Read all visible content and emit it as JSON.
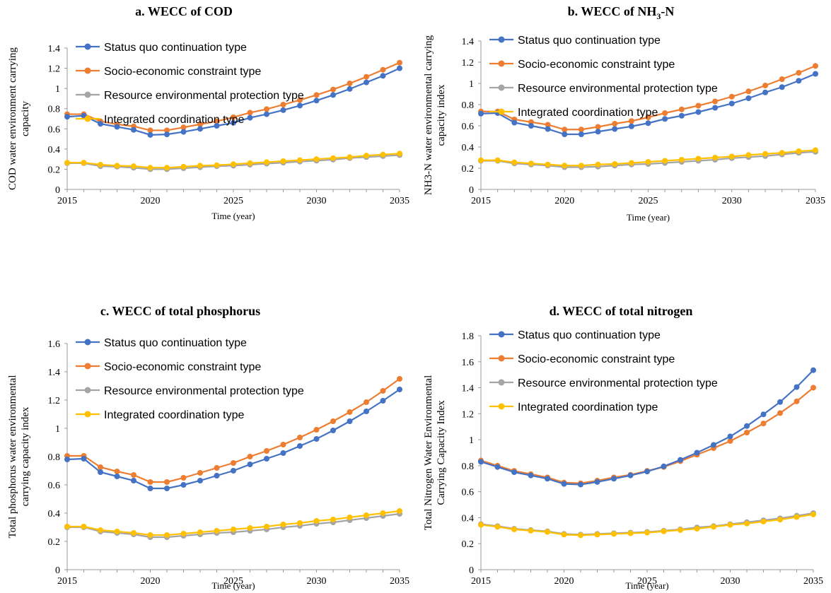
{
  "colors": {
    "series": [
      "#4472C4",
      "#ED7D31",
      "#A5A5A5",
      "#FFC000"
    ],
    "axis": "#9a9a9a"
  },
  "chart_data": [
    {
      "type": "line",
      "title": "a. WECC of COD",
      "title_main": "a. WECC of COD",
      "title_sub": "",
      "title_tail": "",
      "xlabel": "Time (year)",
      "ylabel_lines": [
        "COD water environment carrying",
        "capacity"
      ],
      "ylim": [
        0,
        1.4
      ],
      "ystep": 0.2,
      "yticks": [
        "0",
        "0.2",
        "0.4",
        "0.6",
        "0.8",
        "1",
        "1.2",
        "1.4"
      ],
      "xlim": [
        2015,
        2035
      ],
      "xticks": [
        "2015",
        "2020",
        "2025",
        "2030",
        "2035"
      ],
      "legend": "top-left",
      "x": [
        2015,
        2016,
        2017,
        2018,
        2019,
        2020,
        2021,
        2022,
        2023,
        2024,
        2025,
        2026,
        2027,
        2028,
        2029,
        2030,
        2031,
        2032,
        2033,
        2034,
        2035
      ],
      "series": [
        {
          "name": "Status quo continuation type",
          "values": [
            0.72,
            0.73,
            0.65,
            0.62,
            0.59,
            0.54,
            0.545,
            0.57,
            0.6,
            0.63,
            0.66,
            0.71,
            0.745,
            0.785,
            0.83,
            0.88,
            0.935,
            0.995,
            1.06,
            1.125,
            1.2
          ]
        },
        {
          "name": "Socio-economic constraint type",
          "values": [
            0.745,
            0.745,
            0.675,
            0.645,
            0.625,
            0.585,
            0.585,
            0.615,
            0.645,
            0.675,
            0.715,
            0.76,
            0.795,
            0.84,
            0.885,
            0.935,
            0.99,
            1.05,
            1.115,
            1.185,
            1.255
          ]
        },
        {
          "name": "Resource environmental protection type",
          "values": [
            0.26,
            0.26,
            0.23,
            0.225,
            0.215,
            0.2,
            0.2,
            0.21,
            0.22,
            0.23,
            0.235,
            0.245,
            0.255,
            0.265,
            0.275,
            0.285,
            0.295,
            0.31,
            0.32,
            0.33,
            0.34
          ]
        },
        {
          "name": "Integrated coordination type",
          "values": [
            0.265,
            0.265,
            0.245,
            0.235,
            0.23,
            0.215,
            0.215,
            0.225,
            0.235,
            0.24,
            0.25,
            0.26,
            0.27,
            0.28,
            0.29,
            0.3,
            0.31,
            0.32,
            0.335,
            0.345,
            0.355
          ]
        }
      ]
    },
    {
      "type": "line",
      "title": "b. WECC of NH3-N",
      "title_main": "b. WECC of NH",
      "title_sub": "3",
      "title_tail": "-N",
      "xlabel": "Time (year)",
      "ylabel_lines": [
        "NH3-N water environmental carrying",
        "capacity index"
      ],
      "ylim": [
        0,
        1.4
      ],
      "ystep": 0.2,
      "yticks": [
        "0",
        "0.2",
        "0.4",
        "0.6",
        "0.8",
        "1",
        "1.2",
        "1.4"
      ],
      "xlim": [
        2015,
        2035
      ],
      "xticks": [
        "2015",
        "2020",
        "2025",
        "2030",
        "2035"
      ],
      "legend": "top-left",
      "x": [
        2015,
        2016,
        2017,
        2018,
        2019,
        2020,
        2021,
        2022,
        2023,
        2024,
        2025,
        2026,
        2027,
        2028,
        2029,
        2030,
        2031,
        2032,
        2033,
        2034,
        2035
      ],
      "series": [
        {
          "name": "Status quo continuation type",
          "values": [
            0.715,
            0.72,
            0.63,
            0.6,
            0.57,
            0.52,
            0.52,
            0.545,
            0.57,
            0.595,
            0.625,
            0.665,
            0.695,
            0.73,
            0.77,
            0.81,
            0.86,
            0.915,
            0.965,
            1.025,
            1.09
          ]
        },
        {
          "name": "Socio-economic constraint type",
          "values": [
            0.735,
            0.735,
            0.66,
            0.635,
            0.61,
            0.565,
            0.565,
            0.59,
            0.62,
            0.645,
            0.68,
            0.72,
            0.755,
            0.79,
            0.83,
            0.875,
            0.925,
            0.98,
            1.04,
            1.1,
            1.165
          ]
        },
        {
          "name": "Resource environmental protection type",
          "values": [
            0.27,
            0.27,
            0.245,
            0.235,
            0.225,
            0.21,
            0.21,
            0.215,
            0.225,
            0.235,
            0.24,
            0.25,
            0.26,
            0.27,
            0.28,
            0.295,
            0.305,
            0.315,
            0.33,
            0.345,
            0.355
          ]
        },
        {
          "name": "Integrated coordination type",
          "values": [
            0.275,
            0.275,
            0.255,
            0.245,
            0.235,
            0.225,
            0.225,
            0.235,
            0.24,
            0.25,
            0.26,
            0.27,
            0.28,
            0.29,
            0.3,
            0.31,
            0.325,
            0.335,
            0.345,
            0.36,
            0.37
          ]
        }
      ]
    },
    {
      "type": "line",
      "title": "c. WECC of total phosphorus",
      "title_main": "c. WECC of total phosphorus",
      "title_sub": "",
      "title_tail": "",
      "xlabel": "Time (year)",
      "ylabel_lines": [
        "Total phosphorus water environmental",
        "carrying capacity index"
      ],
      "ylim": [
        0,
        1.6
      ],
      "ystep": 0.2,
      "yticks": [
        "0",
        "0.2",
        "0.4",
        "0.6",
        "0.8",
        "1",
        "1.2",
        "1.4",
        "1.6"
      ],
      "xlim": [
        2015,
        2035
      ],
      "xticks": [
        "2015",
        "2020",
        "2025",
        "2030",
        "2035"
      ],
      "legend": "top-left",
      "x": [
        2015,
        2016,
        2017,
        2018,
        2019,
        2020,
        2021,
        2022,
        2023,
        2024,
        2025,
        2026,
        2027,
        2028,
        2029,
        2030,
        2031,
        2032,
        2033,
        2034,
        2035
      ],
      "series": [
        {
          "name": "Status quo continuation type",
          "values": [
            0.78,
            0.785,
            0.69,
            0.66,
            0.63,
            0.575,
            0.575,
            0.6,
            0.63,
            0.665,
            0.7,
            0.745,
            0.785,
            0.825,
            0.875,
            0.925,
            0.985,
            1.05,
            1.12,
            1.195,
            1.275
          ]
        },
        {
          "name": "Socio-economic constraint type",
          "values": [
            0.805,
            0.805,
            0.725,
            0.695,
            0.67,
            0.62,
            0.62,
            0.65,
            0.685,
            0.72,
            0.755,
            0.8,
            0.84,
            0.885,
            0.935,
            0.99,
            1.05,
            1.115,
            1.185,
            1.265,
            1.35
          ]
        },
        {
          "name": "Resource environmental protection type",
          "values": [
            0.3,
            0.3,
            0.27,
            0.26,
            0.25,
            0.23,
            0.23,
            0.24,
            0.25,
            0.26,
            0.265,
            0.275,
            0.285,
            0.3,
            0.31,
            0.325,
            0.335,
            0.35,
            0.365,
            0.38,
            0.395
          ]
        },
        {
          "name": "Integrated coordination type",
          "values": [
            0.305,
            0.305,
            0.28,
            0.27,
            0.26,
            0.245,
            0.245,
            0.255,
            0.265,
            0.275,
            0.285,
            0.295,
            0.305,
            0.32,
            0.33,
            0.345,
            0.355,
            0.37,
            0.385,
            0.4,
            0.415
          ]
        }
      ]
    },
    {
      "type": "line",
      "title": "d. WECC of total nitrogen",
      "title_main": "d. WECC of total nitrogen",
      "title_sub": "",
      "title_tail": "",
      "xlabel": "Time (year)",
      "ylabel_lines": [
        "Total Nitrogen Water Environmental",
        "Carrying Capacity Index"
      ],
      "ylim": [
        0,
        1.8
      ],
      "ystep": 0.2,
      "yticks": [
        "0",
        "0.2",
        "0.4",
        "0.6",
        "0.8",
        "1",
        "1.2",
        "1.4",
        "1.6",
        "1.8"
      ],
      "xlim": [
        2015,
        2035
      ],
      "xticks": [
        "2015",
        "2020",
        "2025",
        "2030",
        "2035"
      ],
      "legend": "top-left",
      "x": [
        2015,
        2016,
        2017,
        2018,
        2019,
        2020,
        2021,
        2022,
        2023,
        2024,
        2025,
        2026,
        2027,
        2028,
        2029,
        2030,
        2031,
        2032,
        2033,
        2034,
        2035
      ],
      "series": [
        {
          "name": "Status quo continuation type",
          "values": [
            0.83,
            0.79,
            0.75,
            0.725,
            0.7,
            0.66,
            0.655,
            0.675,
            0.7,
            0.725,
            0.755,
            0.795,
            0.845,
            0.9,
            0.96,
            1.025,
            1.105,
            1.195,
            1.29,
            1.405,
            1.535
          ]
        },
        {
          "name": "Socio-economic constraint type",
          "values": [
            0.84,
            0.8,
            0.76,
            0.735,
            0.71,
            0.67,
            0.665,
            0.685,
            0.71,
            0.73,
            0.76,
            0.79,
            0.835,
            0.885,
            0.935,
            0.99,
            1.055,
            1.125,
            1.205,
            1.295,
            1.4
          ]
        },
        {
          "name": "Resource environmental protection type",
          "values": [
            0.35,
            0.335,
            0.315,
            0.305,
            0.295,
            0.275,
            0.27,
            0.275,
            0.28,
            0.285,
            0.29,
            0.3,
            0.31,
            0.325,
            0.335,
            0.35,
            0.365,
            0.38,
            0.395,
            0.415,
            0.435
          ]
        },
        {
          "name": "Integrated coordination type",
          "values": [
            0.345,
            0.33,
            0.31,
            0.3,
            0.29,
            0.27,
            0.265,
            0.27,
            0.275,
            0.28,
            0.285,
            0.295,
            0.305,
            0.315,
            0.33,
            0.345,
            0.355,
            0.37,
            0.385,
            0.405,
            0.425
          ]
        }
      ]
    }
  ]
}
